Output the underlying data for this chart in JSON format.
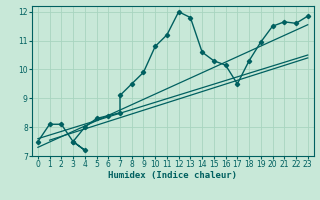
{
  "title": "",
  "xlabel": "Humidex (Indice chaleur)",
  "ylabel": "",
  "bg_color": "#c8e8d8",
  "line_color": "#006060",
  "grid_color": "#a8d4c0",
  "xlim": [
    -0.5,
    23.5
  ],
  "ylim": [
    7,
    12.2
  ],
  "yticks": [
    7,
    8,
    9,
    10,
    11,
    12
  ],
  "xticks": [
    0,
    1,
    2,
    3,
    4,
    5,
    6,
    7,
    8,
    9,
    10,
    11,
    12,
    13,
    14,
    15,
    16,
    17,
    18,
    19,
    20,
    21,
    22,
    23
  ],
  "curve_x": [
    0,
    1,
    2,
    3,
    4,
    3,
    4,
    5,
    6,
    7,
    7,
    8,
    9,
    10,
    11,
    12,
    13,
    14,
    15,
    16,
    17,
    18,
    19,
    20,
    21,
    22,
    23
  ],
  "curve_y": [
    7.5,
    8.1,
    8.1,
    7.5,
    7.2,
    7.5,
    8.0,
    8.3,
    8.4,
    8.5,
    9.1,
    9.5,
    9.9,
    10.8,
    11.2,
    12.0,
    11.8,
    10.6,
    10.3,
    10.15,
    9.5,
    10.3,
    10.95,
    11.5,
    11.65,
    11.6,
    11.85
  ],
  "reg_line1_x": [
    0,
    23
  ],
  "reg_line1_y": [
    7.3,
    11.55
  ],
  "reg_line2_x": [
    0,
    23
  ],
  "reg_line2_y": [
    7.6,
    10.5
  ],
  "reg_line3_x": [
    1,
    23
  ],
  "reg_line3_y": [
    7.55,
    10.4
  ]
}
